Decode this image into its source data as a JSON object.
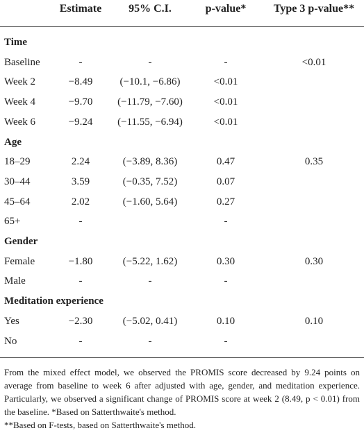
{
  "table": {
    "header": [
      "Estimate",
      "95% C.I.",
      "p-value*",
      "Type 3 p-value**"
    ],
    "sections": [
      {
        "title": "Time",
        "rows": [
          [
            "Baseline",
            "-",
            "-",
            "-",
            "<0.01"
          ],
          [
            "Week 2",
            "−8.49",
            "(−10.1, −6.86)",
            "<0.01",
            null
          ],
          [
            "Week 4",
            "−9.70",
            "(−11.79, −7.60)",
            "<0.01",
            null
          ],
          [
            "Week 6",
            "−9.24",
            "(−11.55, −6.94)",
            "<0.01",
            null
          ]
        ]
      },
      {
        "title": "Age",
        "rows": [
          [
            "18–29",
            "2.24",
            "(−3.89, 8.36)",
            "0.47",
            "0.35"
          ],
          [
            "30–44",
            "3.59",
            "(−0.35, 7.52)",
            "0.07",
            null
          ],
          [
            "45–64",
            "2.02",
            "(−1.60, 5.64)",
            "0.27",
            null
          ],
          [
            "65+",
            "-",
            null,
            "-",
            null
          ]
        ]
      },
      {
        "title": "Gender",
        "rows": [
          [
            "Female",
            "−1.80",
            "(−5.22, 1.62)",
            "0.30",
            "0.30"
          ],
          [
            "Male",
            "-",
            "-",
            "-",
            null
          ]
        ]
      },
      {
        "title": "Meditation experience",
        "rows": [
          [
            "Yes",
            "−2.30",
            "(−5.02, 0.41)",
            "0.10",
            "0.10"
          ],
          [
            "No",
            "-",
            "-",
            "-",
            null
          ]
        ]
      }
    ]
  },
  "notes": {
    "text": "From the mixed effect model, we observed the PROMIS score decreased by 9.24 points on average from baseline to week 6 after adjusted with age, gender, and meditation experience. Particularly, we observed a significant change of PROMIS score at week 2 (8.49, p < 0.01) from the baseline.",
    "note1": "*Based on Satterthwaite's method.",
    "note2": "**Based on F-tests, based on Satterthwaite's method."
  }
}
